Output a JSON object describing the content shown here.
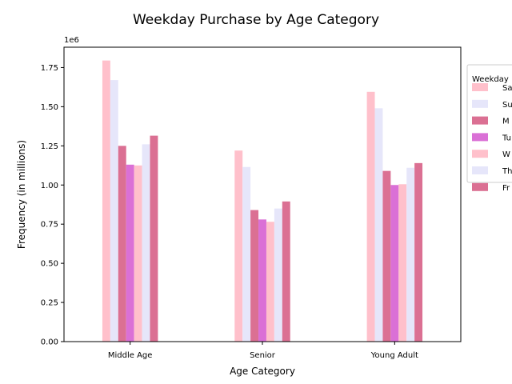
{
  "chart_data": {
    "type": "bar",
    "title": "Weekday Purchase by Age Category",
    "xlabel": "Age Category",
    "ylabel": "Frequency (in millions)",
    "y_offset_label": "1e6",
    "ylim": [
      0,
      1880000
    ],
    "yticks": [
      0,
      250000,
      500000,
      750000,
      1000000,
      1250000,
      1500000,
      1750000
    ],
    "ytick_labels": [
      "0.00",
      "0.25",
      "0.50",
      "0.75",
      "1.00",
      "1.25",
      "1.50",
      "1.75"
    ],
    "categories": [
      "Middle Age",
      "Senior",
      "Young Adult"
    ],
    "grid": false,
    "legend": {
      "title": "Weekday",
      "placement": "outside-right-top"
    },
    "series": [
      {
        "name": "Sa",
        "color": "#ffc0cb",
        "values": [
          1795000,
          1220000,
          1595000
        ]
      },
      {
        "name": "Su",
        "color": "#e6e6fa",
        "values": [
          1670000,
          1115000,
          1490000
        ]
      },
      {
        "name": "M",
        "color": "#db7093",
        "values": [
          1250000,
          840000,
          1090000
        ]
      },
      {
        "name": "Tu",
        "color": "#da70d6",
        "values": [
          1130000,
          780000,
          1000000
        ]
      },
      {
        "name": "W",
        "color": "#ffc0cb",
        "values": [
          1125000,
          765000,
          1005000
        ]
      },
      {
        "name": "Th",
        "color": "#e6e6fa",
        "values": [
          1260000,
          850000,
          1110000
        ]
      },
      {
        "name": "Fr",
        "color": "#db7093",
        "values": [
          1315000,
          895000,
          1140000
        ]
      }
    ]
  }
}
